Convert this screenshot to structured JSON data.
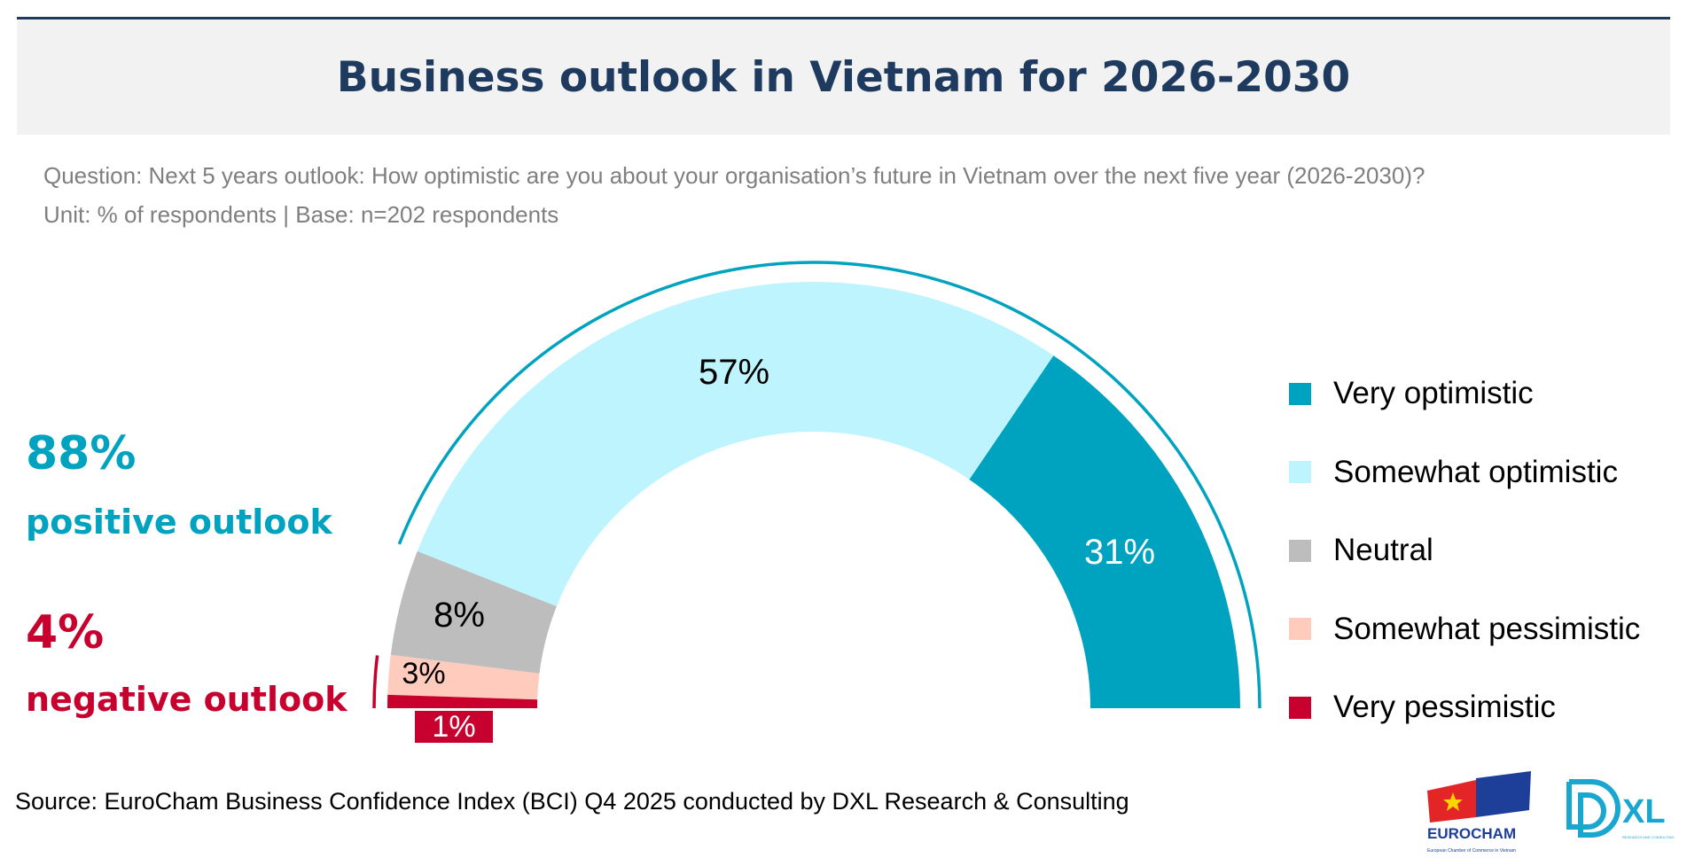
{
  "header": {
    "title": "Business outlook in Vietnam for 2026-2030"
  },
  "question": "Question: Next 5 years outlook: How optimistic are you about your organisation’s future in Vietnam over the next five year (2026-2030)?",
  "unit": "Unit: % of respondents | Base: n=202 respondents",
  "summary": {
    "positive_value": "88%",
    "positive_label": "positive outlook",
    "positive_color": "#00a3bf",
    "negative_value": "4%",
    "negative_label": "negative outlook",
    "negative_color": "#c8002d"
  },
  "chart_data": {
    "type": "pie",
    "subtype": "half-donut",
    "categories": [
      "Very optimistic",
      "Somewhat optimistic",
      "Neutral",
      "Somewhat pessimistic",
      "Very pessimistic"
    ],
    "values": [
      31,
      57,
      8,
      3,
      1
    ],
    "labels": [
      "31%",
      "57%",
      "8%",
      "3%",
      "1%"
    ],
    "colors": [
      "#00a3bf",
      "#bdf4fd",
      "#bdbdbd",
      "#ffcbbd",
      "#c8002d"
    ],
    "legend_position": "right"
  },
  "source": "Source: EuroCham Business Confidence Index (BCI) Q4 2025 conducted by DXL Research & Consulting",
  "logos": {
    "eurocham": "EUROCHAM",
    "eurocham_sub": "European Chamber of Commerce in Vietnam",
    "dxl": "XL",
    "dxl_sub": "RESEARCH AND CONSULTING"
  }
}
